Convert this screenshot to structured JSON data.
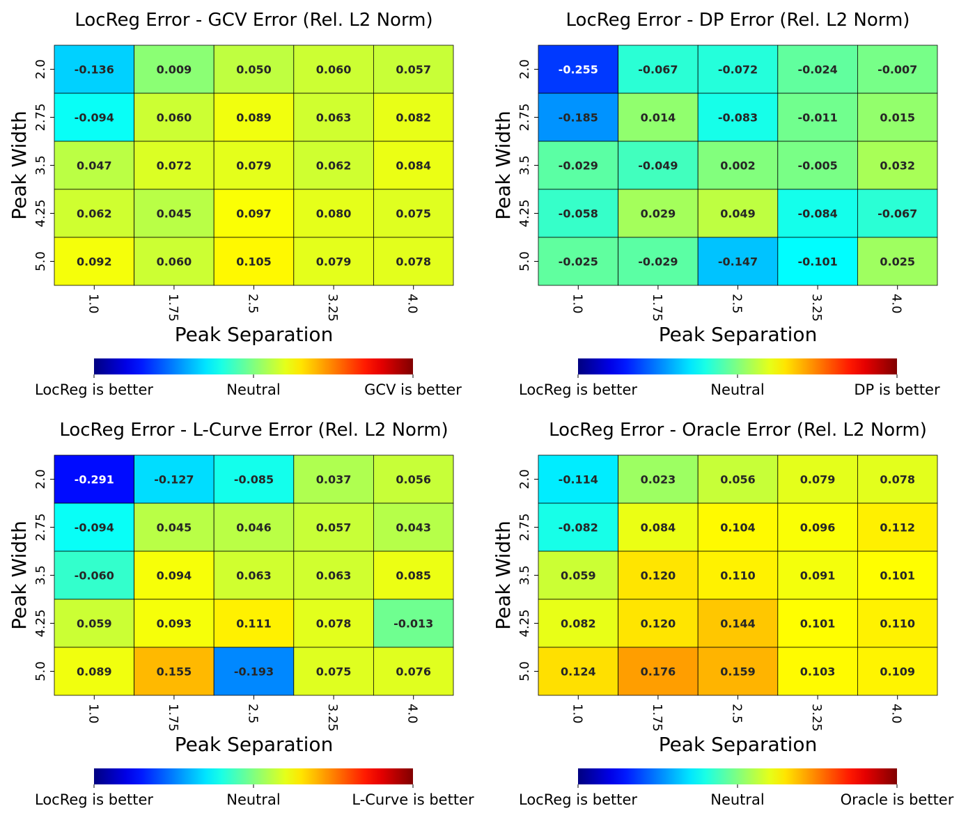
{
  "chart_data": [
    {
      "type": "heatmap",
      "title": "LocReg Error - GCV Error (Rel. L2 Norm)",
      "xlabel": "Peak Separation",
      "ylabel": "Peak Width",
      "x": [
        "1.0",
        "1.75",
        "2.5",
        "3.25",
        "4.0"
      ],
      "y": [
        "2.0",
        "2.75",
        "3.5",
        "4.25",
        "5.0"
      ],
      "values": [
        [
          -0.136,
          0.009,
          0.05,
          0.06,
          0.057
        ],
        [
          -0.094,
          0.06,
          0.089,
          0.063,
          0.082
        ],
        [
          0.047,
          0.072,
          0.079,
          0.062,
          0.084
        ],
        [
          0.062,
          0.045,
          0.097,
          0.08,
          0.075
        ],
        [
          0.092,
          0.06,
          0.105,
          0.079,
          0.078
        ]
      ],
      "labels": [
        "-0.136",
        "0.009",
        "0.050",
        "0.060",
        "0.057",
        "-0.094",
        "0.060",
        "0.089",
        "0.063",
        "0.082",
        "0.047",
        "0.072",
        "0.079",
        "0.062",
        "0.084",
        "0.062",
        "0.045",
        "0.097",
        "0.080",
        "0.075",
        "0.092",
        "0.060",
        "0.105",
        "0.079",
        "0.078"
      ],
      "colormap": "jet",
      "vlim": [
        -0.4,
        0.4
      ],
      "colorbar": {
        "left": "LocReg is better",
        "center": "Neutral",
        "right": "GCV is better"
      }
    },
    {
      "type": "heatmap",
      "title": "LocReg Error - DP Error (Rel. L2 Norm)",
      "xlabel": "Peak Separation",
      "ylabel": "Peak Width",
      "x": [
        "1.0",
        "1.75",
        "2.5",
        "3.25",
        "4.0"
      ],
      "y": [
        "2.0",
        "2.75",
        "3.5",
        "4.25",
        "5.0"
      ],
      "values": [
        [
          -0.255,
          -0.067,
          -0.072,
          -0.024,
          -0.007
        ],
        [
          -0.185,
          0.014,
          -0.083,
          -0.011,
          0.015
        ],
        [
          -0.029,
          -0.049,
          0.002,
          -0.005,
          0.032
        ],
        [
          -0.058,
          0.029,
          0.049,
          -0.084,
          -0.067
        ],
        [
          -0.025,
          -0.029,
          -0.147,
          -0.101,
          0.025
        ]
      ],
      "labels": [
        "-0.255",
        "-0.067",
        "-0.072",
        "-0.024",
        "-0.007",
        "-0.185",
        "0.014",
        "-0.083",
        "-0.011",
        "0.015",
        "-0.029",
        "-0.049",
        "0.002",
        "-0.005",
        "0.032",
        "-0.058",
        "0.029",
        "0.049",
        "-0.084",
        "-0.067",
        "-0.025",
        "-0.029",
        "-0.147",
        "-0.101",
        "0.025"
      ],
      "colormap": "jet",
      "vlim": [
        -0.4,
        0.4
      ],
      "colorbar": {
        "left": "LocReg is better",
        "center": "Neutral",
        "right": "DP is better"
      }
    },
    {
      "type": "heatmap",
      "title": "LocReg Error - L-Curve Error (Rel. L2 Norm)",
      "xlabel": "Peak Separation",
      "ylabel": "Peak Width",
      "x": [
        "1.0",
        "1.75",
        "2.5",
        "3.25",
        "4.0"
      ],
      "y": [
        "2.0",
        "2.75",
        "3.5",
        "4.25",
        "5.0"
      ],
      "values": [
        [
          -0.291,
          -0.127,
          -0.085,
          0.037,
          0.056
        ],
        [
          -0.094,
          0.045,
          0.046,
          0.057,
          0.043
        ],
        [
          -0.06,
          0.094,
          0.063,
          0.063,
          0.085
        ],
        [
          0.059,
          0.093,
          0.111,
          0.078,
          -0.013
        ],
        [
          0.089,
          0.155,
          -0.193,
          0.075,
          0.076
        ]
      ],
      "labels": [
        "-0.291",
        "-0.127",
        "-0.085",
        "0.037",
        "0.056",
        "-0.094",
        "0.045",
        "0.046",
        "0.057",
        "0.043",
        "-0.060",
        "0.094",
        "0.063",
        "0.063",
        "0.085",
        "0.059",
        "0.093",
        "0.111",
        "0.078",
        "-0.013",
        "0.089",
        "0.155",
        "-0.193",
        "0.075",
        "0.076"
      ],
      "colormap": "jet",
      "vlim": [
        -0.4,
        0.4
      ],
      "colorbar": {
        "left": "LocReg is better",
        "center": "Neutral",
        "right": "L-Curve is better"
      }
    },
    {
      "type": "heatmap",
      "title": "LocReg Error - Oracle Error (Rel. L2 Norm)",
      "xlabel": "Peak Separation",
      "ylabel": "Peak Width",
      "x": [
        "1.0",
        "1.75",
        "2.5",
        "3.25",
        "4.0"
      ],
      "y": [
        "2.0",
        "2.75",
        "3.5",
        "4.25",
        "5.0"
      ],
      "values": [
        [
          -0.114,
          0.023,
          0.056,
          0.079,
          0.078
        ],
        [
          -0.082,
          0.084,
          0.104,
          0.096,
          0.112
        ],
        [
          0.059,
          0.12,
          0.11,
          0.091,
          0.101
        ],
        [
          0.082,
          0.12,
          0.144,
          0.101,
          0.11
        ],
        [
          0.124,
          0.176,
          0.159,
          0.103,
          0.109
        ]
      ],
      "labels": [
        "-0.114",
        "0.023",
        "0.056",
        "0.079",
        "0.078",
        "-0.082",
        "0.084",
        "0.104",
        "0.096",
        "0.112",
        "0.059",
        "0.120",
        "0.110",
        "0.091",
        "0.101",
        "0.082",
        "0.120",
        "0.144",
        "0.101",
        "0.110",
        "0.124",
        "0.176",
        "0.159",
        "0.103",
        "0.109"
      ],
      "colormap": "jet",
      "vlim": [
        -0.4,
        0.4
      ],
      "colorbar": {
        "left": "LocReg is better",
        "center": "Neutral",
        "right": "Oracle is better"
      }
    }
  ]
}
